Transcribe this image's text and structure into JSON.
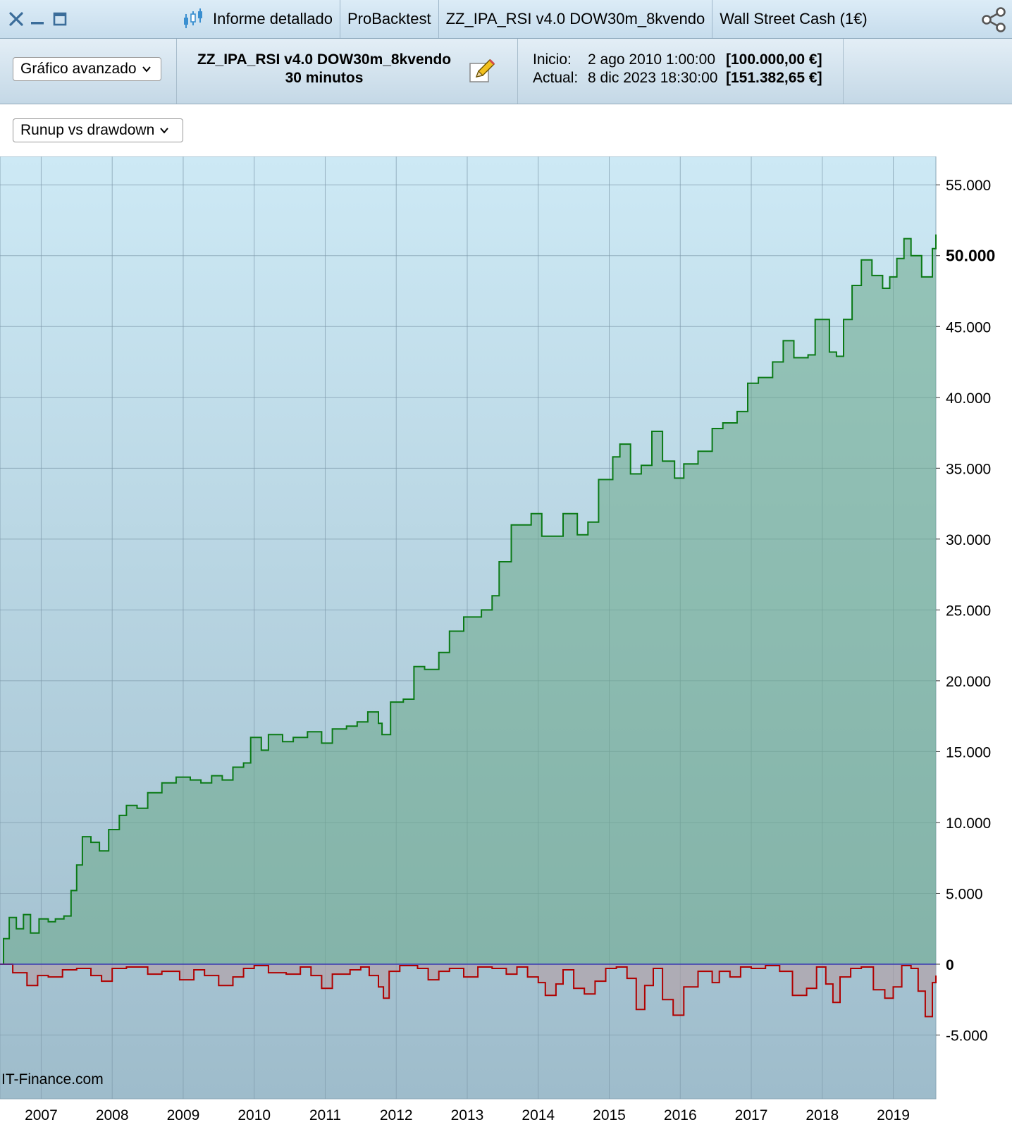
{
  "titlebar": {
    "tabs": [
      "Informe detallado",
      "ProBacktest",
      "ZZ_IPA_RSI v4.0 DOW30m_8kvendo",
      "Wall Street Cash (1€)"
    ]
  },
  "toolbar": {
    "view_select": "Gráfico avanzado",
    "strategy_name": "ZZ_IPA_RSI v4.0 DOW30m_8kvendo",
    "timeframe": "30 minutos",
    "start_label": "Inicio:",
    "start_date": "2 ago 2010 1:00:00",
    "start_capital": "[100.000,00 €]",
    "current_label": "Actual:",
    "current_date": "8 dic 2023 18:30:00",
    "current_capital": "[151.382,65 €]"
  },
  "chart_select": "Runup vs drawdown",
  "watermark": "IT-Finance.com",
  "colors": {
    "runup": "#0b7a16",
    "drawdown": "#b00000",
    "zero_line": "#3a3ab0",
    "bg_top": "#cde9f5",
    "bg_bottom": "#9ebccb"
  },
  "chart_data": {
    "type": "area",
    "title": "",
    "xlabel": "",
    "ylabel": "",
    "x_ticks": [
      "2007",
      "2008",
      "2009",
      "2010",
      "2011",
      "2012",
      "2013",
      "2014",
      "2015",
      "2016",
      "2017",
      "2018",
      "2019"
    ],
    "y_ticks": [
      "55.000",
      "50.000",
      "45.000",
      "40.000",
      "35.000",
      "30.000",
      "25.000",
      "20.000",
      "15.000",
      "10.000",
      "5.000",
      "0",
      "-5.000"
    ],
    "y_tick_values": [
      55000,
      50000,
      45000,
      40000,
      35000,
      30000,
      25000,
      20000,
      15000,
      10000,
      5000,
      0,
      -5000
    ],
    "ylim": [
      -9500,
      57000
    ],
    "xlim": [
      2006.42,
      2019.6
    ],
    "grid": true,
    "series": [
      {
        "values": [
          [
            2006.42,
            0
          ],
          [
            2006.47,
            1800
          ],
          [
            2006.55,
            3300
          ],
          [
            2006.65,
            2500
          ],
          [
            2006.75,
            3500
          ],
          [
            2006.85,
            2200
          ],
          [
            2006.97,
            3200
          ],
          [
            2007.1,
            3000
          ],
          [
            2007.2,
            3200
          ],
          [
            2007.32,
            3400
          ],
          [
            2007.42,
            5200
          ],
          [
            2007.5,
            7000
          ],
          [
            2007.58,
            9000
          ],
          [
            2007.7,
            8600
          ],
          [
            2007.82,
            8000
          ],
          [
            2007.95,
            9500
          ],
          [
            2008.1,
            10500
          ],
          [
            2008.2,
            11200
          ],
          [
            2008.35,
            11000
          ],
          [
            2008.5,
            12100
          ],
          [
            2008.7,
            12800
          ],
          [
            2008.9,
            13200
          ],
          [
            2009.1,
            13000
          ],
          [
            2009.25,
            12800
          ],
          [
            2009.4,
            13300
          ],
          [
            2009.55,
            13000
          ],
          [
            2009.7,
            13900
          ],
          [
            2009.85,
            14200
          ],
          [
            2009.95,
            16000
          ],
          [
            2010.1,
            15100
          ],
          [
            2010.2,
            16200
          ],
          [
            2010.4,
            15700
          ],
          [
            2010.55,
            16000
          ],
          [
            2010.75,
            16400
          ],
          [
            2010.95,
            15600
          ],
          [
            2011.1,
            16600
          ],
          [
            2011.3,
            16800
          ],
          [
            2011.45,
            17100
          ],
          [
            2011.6,
            17800
          ],
          [
            2011.75,
            17000
          ],
          [
            2011.8,
            16200
          ],
          [
            2011.92,
            18500
          ],
          [
            2012.1,
            18700
          ],
          [
            2012.25,
            21000
          ],
          [
            2012.4,
            20800
          ],
          [
            2012.6,
            22000
          ],
          [
            2012.75,
            23500
          ],
          [
            2012.95,
            24500
          ],
          [
            2013.2,
            25000
          ],
          [
            2013.35,
            26000
          ],
          [
            2013.45,
            28400
          ],
          [
            2013.62,
            31000
          ],
          [
            2013.9,
            31800
          ],
          [
            2014.05,
            30200
          ],
          [
            2014.2,
            30200
          ],
          [
            2014.35,
            31800
          ],
          [
            2014.55,
            30300
          ],
          [
            2014.7,
            31200
          ],
          [
            2014.85,
            34200
          ],
          [
            2015.05,
            35800
          ],
          [
            2015.15,
            36700
          ],
          [
            2015.3,
            34600
          ],
          [
            2015.45,
            35200
          ],
          [
            2015.6,
            37600
          ],
          [
            2015.75,
            35500
          ],
          [
            2015.92,
            34300
          ],
          [
            2016.05,
            35300
          ],
          [
            2016.25,
            36200
          ],
          [
            2016.45,
            37800
          ],
          [
            2016.6,
            38200
          ],
          [
            2016.8,
            39000
          ],
          [
            2016.95,
            41000
          ],
          [
            2017.1,
            41400
          ],
          [
            2017.3,
            42500
          ],
          [
            2017.45,
            44000
          ],
          [
            2017.6,
            42800
          ],
          [
            2017.8,
            43000
          ],
          [
            2017.9,
            45500
          ],
          [
            2018.1,
            43200
          ],
          [
            2018.2,
            42900
          ],
          [
            2018.3,
            45500
          ],
          [
            2018.42,
            47900
          ],
          [
            2018.55,
            49700
          ],
          [
            2018.7,
            48600
          ],
          [
            2018.85,
            47700
          ],
          [
            2018.95,
            48500
          ],
          [
            2019.05,
            49800
          ],
          [
            2019.15,
            51200
          ],
          [
            2019.25,
            50000
          ],
          [
            2019.4,
            48500
          ],
          [
            2019.55,
            50500
          ],
          [
            2019.6,
            51500
          ]
        ]
      },
      {
        "values": [
          [
            2006.42,
            0
          ],
          [
            2006.6,
            -600
          ],
          [
            2006.8,
            -1500
          ],
          [
            2006.95,
            -800
          ],
          [
            2007.1,
            -900
          ],
          [
            2007.3,
            -400
          ],
          [
            2007.5,
            -300
          ],
          [
            2007.7,
            -800
          ],
          [
            2007.85,
            -1200
          ],
          [
            2008.0,
            -300
          ],
          [
            2008.2,
            -200
          ],
          [
            2008.5,
            -700
          ],
          [
            2008.7,
            -500
          ],
          [
            2008.95,
            -1100
          ],
          [
            2009.15,
            -400
          ],
          [
            2009.3,
            -800
          ],
          [
            2009.5,
            -1500
          ],
          [
            2009.7,
            -900
          ],
          [
            2009.85,
            -300
          ],
          [
            2010.0,
            -100
          ],
          [
            2010.2,
            -600
          ],
          [
            2010.45,
            -700
          ],
          [
            2010.65,
            -200
          ],
          [
            2010.8,
            -800
          ],
          [
            2010.95,
            -1700
          ],
          [
            2011.1,
            -700
          ],
          [
            2011.35,
            -400
          ],
          [
            2011.5,
            -200
          ],
          [
            2011.62,
            -800
          ],
          [
            2011.75,
            -1600
          ],
          [
            2011.82,
            -2400
          ],
          [
            2011.9,
            -500
          ],
          [
            2012.05,
            -100
          ],
          [
            2012.3,
            -300
          ],
          [
            2012.45,
            -1100
          ],
          [
            2012.6,
            -500
          ],
          [
            2012.75,
            -300
          ],
          [
            2012.95,
            -900
          ],
          [
            2013.15,
            -200
          ],
          [
            2013.35,
            -300
          ],
          [
            2013.55,
            -700
          ],
          [
            2013.7,
            -200
          ],
          [
            2013.85,
            -900
          ],
          [
            2014.0,
            -1300
          ],
          [
            2014.1,
            -2200
          ],
          [
            2014.25,
            -1400
          ],
          [
            2014.35,
            -400
          ],
          [
            2014.5,
            -1700
          ],
          [
            2014.65,
            -2100
          ],
          [
            2014.8,
            -1200
          ],
          [
            2014.95,
            -300
          ],
          [
            2015.1,
            -200
          ],
          [
            2015.25,
            -1000
          ],
          [
            2015.38,
            -3200
          ],
          [
            2015.5,
            -1500
          ],
          [
            2015.62,
            -300
          ],
          [
            2015.75,
            -2500
          ],
          [
            2015.9,
            -3600
          ],
          [
            2016.05,
            -1600
          ],
          [
            2016.25,
            -500
          ],
          [
            2016.45,
            -1300
          ],
          [
            2016.55,
            -500
          ],
          [
            2016.7,
            -900
          ],
          [
            2016.85,
            -200
          ],
          [
            2017.0,
            -300
          ],
          [
            2017.2,
            -100
          ],
          [
            2017.4,
            -500
          ],
          [
            2017.58,
            -2200
          ],
          [
            2017.78,
            -1700
          ],
          [
            2017.92,
            -200
          ],
          [
            2018.05,
            -1400
          ],
          [
            2018.15,
            -2700
          ],
          [
            2018.25,
            -900
          ],
          [
            2018.4,
            -300
          ],
          [
            2018.55,
            -200
          ],
          [
            2018.72,
            -1800
          ],
          [
            2018.88,
            -2400
          ],
          [
            2019.0,
            -1600
          ],
          [
            2019.12,
            -100
          ],
          [
            2019.25,
            -300
          ],
          [
            2019.35,
            -1900
          ],
          [
            2019.45,
            -3700
          ],
          [
            2019.55,
            -1300
          ],
          [
            2019.6,
            -800
          ]
        ]
      }
    ]
  }
}
